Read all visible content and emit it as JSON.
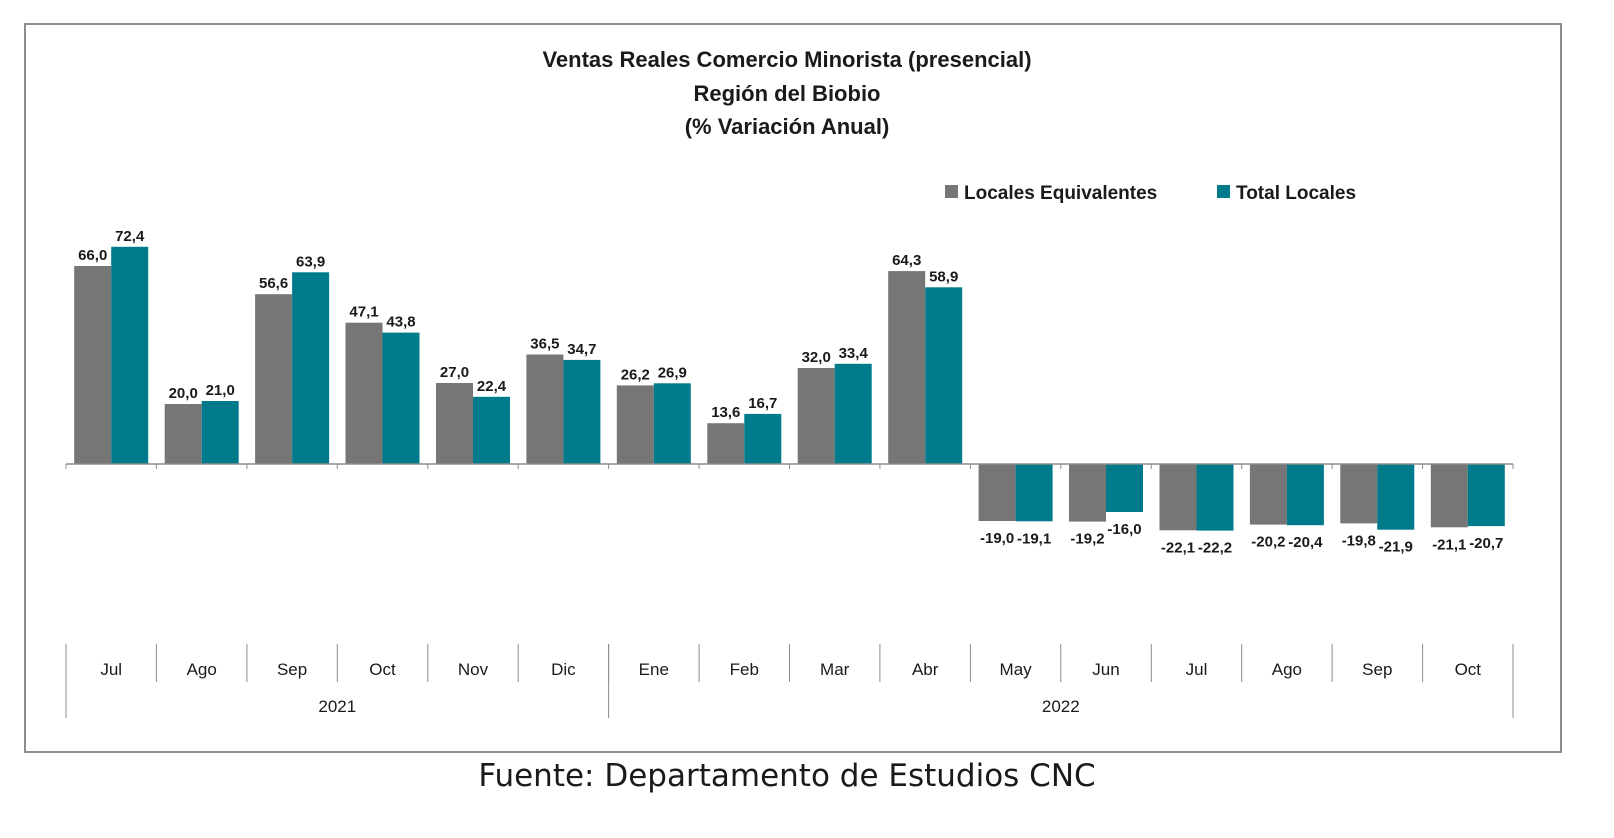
{
  "source_note": "Fuente: Departamento de Estudios CNC",
  "colors": {
    "series_1": "#767676",
    "series_2": "#007b8c",
    "axis": "#8c8c8c",
    "frame": "#8c8c8c"
  },
  "chart_data": {
    "type": "bar",
    "title": [
      "Ventas Reales Comercio Minorista (presencial)",
      "Región del Biobio",
      "(% Variación Anual)"
    ],
    "categories": [
      "Jul",
      "Ago",
      "Sep",
      "Oct",
      "Nov",
      "Dic",
      "Ene",
      "Feb",
      "Mar",
      "Abr",
      "May",
      "Jun",
      "Jul",
      "Ago",
      "Sep",
      "Oct"
    ],
    "category_groups": [
      {
        "label": "2021",
        "count": 6
      },
      {
        "label": "2022",
        "count": 10
      }
    ],
    "series": [
      {
        "name": "Locales Equivalentes",
        "color": "#767676",
        "values": [
          66.0,
          20.0,
          56.6,
          47.1,
          27.0,
          36.5,
          26.2,
          13.6,
          32.0,
          64.3,
          -19.0,
          -19.2,
          -22.1,
          -20.2,
          -19.8,
          -21.1
        ],
        "labels": [
          "66,0",
          "20,0",
          "56,6",
          "47,1",
          "27,0",
          "36,5",
          "26,2",
          "13,6",
          "32,0",
          "64,3",
          "-19,0",
          "-19,2",
          "-22,1",
          "-20,2",
          "-19,8",
          "-21,1"
        ]
      },
      {
        "name": "Total Locales",
        "color": "#007b8c",
        "values": [
          72.4,
          21.0,
          63.9,
          43.8,
          22.4,
          34.7,
          26.9,
          16.7,
          33.4,
          58.9,
          -19.1,
          -16.0,
          -22.2,
          -20.4,
          -21.9,
          -20.7
        ],
        "labels": [
          "72,4",
          "21,0",
          "63,9",
          "43,8",
          "22,4",
          "34,7",
          "26,9",
          "16,7",
          "33,4",
          "58,9",
          "-19,1",
          "-16,0",
          "-22,2",
          "-20,4",
          "-21,9",
          "-20,7"
        ]
      }
    ],
    "legend": "top-right",
    "grid": false,
    "data_labels": true
  }
}
